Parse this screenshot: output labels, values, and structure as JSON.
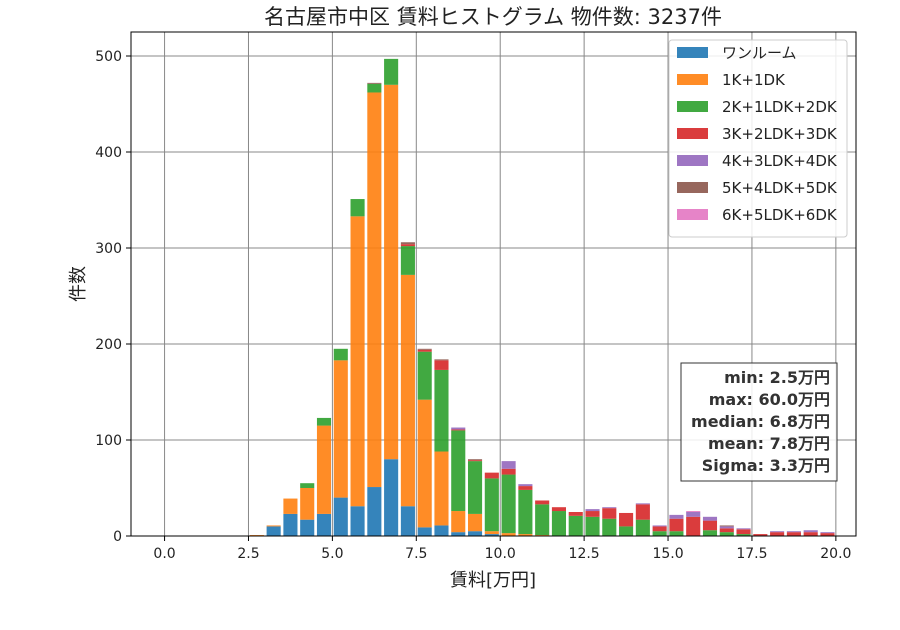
{
  "chart_data": {
    "type": "bar",
    "stacked": true,
    "title": "名古屋市中区 賃料ヒストグラム 物件数: 3237件",
    "xlabel": "賃料[万円]",
    "ylabel": "件数",
    "xlim": [
      -1,
      20.6
    ],
    "ylim": [
      0,
      525
    ],
    "xticks": [
      0.0,
      2.5,
      5.0,
      7.5,
      10.0,
      12.5,
      15.0,
      17.5,
      20.0
    ],
    "xtick_labels": [
      "0.0",
      "2.5",
      "5.0",
      "7.5",
      "10.0",
      "12.5",
      "15.0",
      "17.5",
      "20.0"
    ],
    "yticks": [
      0,
      100,
      200,
      300,
      400,
      500
    ],
    "ytick_labels": [
      "0",
      "100",
      "200",
      "300",
      "400",
      "500"
    ],
    "grid": true,
    "legend_position": "top-right",
    "bin_width": 0.5,
    "bin_centers": [
      2.25,
      2.75,
      3.25,
      3.75,
      4.25,
      4.75,
      5.25,
      5.75,
      6.25,
      6.75,
      7.25,
      7.75,
      8.25,
      8.75,
      9.25,
      9.75,
      10.25,
      10.75,
      11.25,
      11.75,
      12.25,
      12.75,
      13.25,
      13.75,
      14.25,
      14.75,
      15.25,
      15.75,
      16.25,
      16.75,
      17.25,
      17.75,
      18.25,
      18.75,
      19.25,
      19.75
    ],
    "series": [
      {
        "name": "ワンルーム",
        "color": "#1f77b4",
        "values": [
          0,
          0,
          10,
          23,
          17,
          23,
          40,
          31,
          51,
          80,
          31,
          9,
          11,
          4,
          5,
          2,
          0,
          0,
          0,
          0,
          0,
          0,
          0,
          0,
          0,
          0,
          0,
          0,
          0,
          0,
          0,
          0,
          0,
          0,
          0,
          0
        ]
      },
      {
        "name": "1K+1DK",
        "color": "#ff7f0e",
        "values": [
          0,
          1,
          1,
          16,
          33,
          92,
          143,
          302,
          411,
          390,
          241,
          133,
          77,
          22,
          18,
          3,
          3,
          2,
          1,
          0,
          0,
          0,
          0,
          0,
          0,
          0,
          0,
          0,
          0,
          0,
          0,
          0,
          0,
          0,
          0,
          0
        ]
      },
      {
        "name": "2K+1LDK+2DK",
        "color": "#2ca02c",
        "values": [
          0,
          0,
          0,
          0,
          5,
          8,
          12,
          18,
          9,
          27,
          30,
          50,
          85,
          84,
          55,
          55,
          61,
          46,
          32,
          26,
          21,
          20,
          18,
          10,
          17,
          5,
          5,
          0,
          6,
          4,
          2,
          0,
          0,
          0,
          0,
          0
        ]
      },
      {
        "name": "3K+2LDK+3DK",
        "color": "#d62728",
        "values": [
          0,
          0,
          0,
          0,
          0,
          0,
          0,
          0,
          0,
          0,
          2,
          2,
          10,
          1,
          1,
          6,
          6,
          4,
          4,
          4,
          4,
          6,
          11,
          14,
          16,
          5,
          13,
          20,
          10,
          4,
          5,
          2,
          4,
          4,
          4,
          3
        ]
      },
      {
        "name": "4K+3LDK+4DK",
        "color": "#9467bd",
        "values": [
          0,
          0,
          0,
          0,
          0,
          0,
          0,
          0,
          0,
          0,
          0,
          0,
          0,
          2,
          0,
          0,
          8,
          2,
          0,
          0,
          0,
          2,
          1,
          0,
          1,
          1,
          4,
          5,
          4,
          2,
          1,
          0,
          1,
          1,
          2,
          1
        ]
      },
      {
        "name": "5K+4LDK+5DK",
        "color": "#8c564b",
        "values": [
          0,
          0,
          0,
          0,
          0,
          0,
          0,
          0,
          1,
          0,
          2,
          1,
          1,
          0,
          1,
          0,
          0,
          0,
          0,
          0,
          0,
          0,
          0,
          0,
          0,
          0,
          0,
          0,
          0,
          1,
          0,
          0,
          0,
          0,
          0,
          0
        ]
      },
      {
        "name": "6K+5LDK+6DK",
        "color": "#e377c2",
        "values": [
          0,
          0,
          0,
          0,
          0,
          0,
          0,
          0,
          0,
          0,
          0,
          0,
          0,
          0,
          0,
          0,
          0,
          0,
          0,
          0,
          0,
          0,
          0,
          0,
          0,
          0,
          0,
          1,
          0,
          0,
          0,
          0,
          0,
          0,
          0,
          0
        ]
      }
    ],
    "stats_box": [
      "min: 2.5万円",
      "max: 60.0万円",
      "median: 6.8万円",
      "mean: 7.8万円",
      "Sigma: 3.3万円"
    ]
  }
}
